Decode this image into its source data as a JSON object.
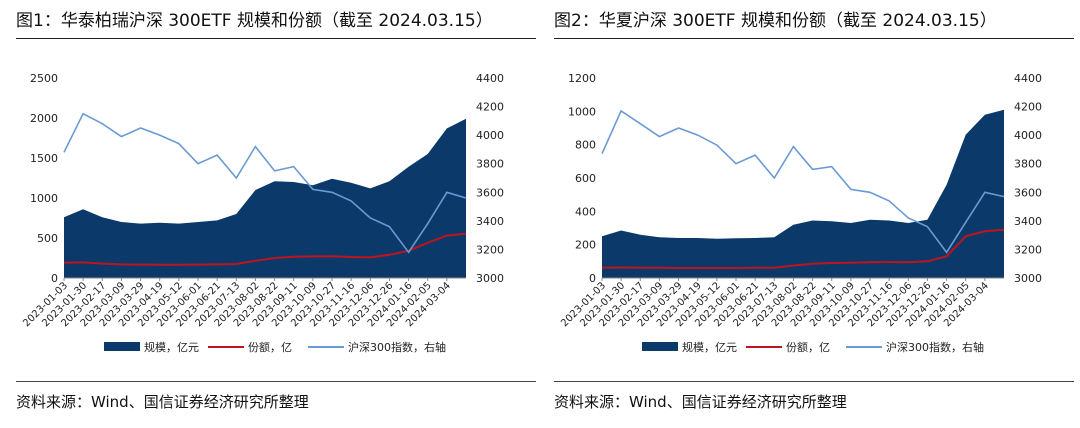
{
  "source_note": "资料来源：Wind、国信证券经济研究所整理",
  "chart_data": [
    {
      "type": "area",
      "title": "图1：华泰柏瑞沪深 300ETF 规模和份额（截至 2024.03.15）",
      "source": "资料来源：Wind、国信证券经济研究所整理",
      "xlabel": "",
      "ylabel": "",
      "y2label": "",
      "ylim": [
        0,
        2500
      ],
      "yticks": [
        0,
        500,
        1000,
        1500,
        2000,
        2500
      ],
      "y2lim": [
        3000,
        4400
      ],
      "y2ticks": [
        3000,
        3200,
        3400,
        3600,
        3800,
        4000,
        4200,
        4400
      ],
      "x": [
        "2023-01-03",
        "2023-01-30",
        "2023-02-17",
        "2023-03-09",
        "2023-03-29",
        "2023-04-19",
        "2023-05-12",
        "2023-06-01",
        "2023-06-21",
        "2023-07-13",
        "2023-08-02",
        "2023-08-22",
        "2023-09-11",
        "2023-10-09",
        "2023-10-27",
        "2023-11-16",
        "2023-12-06",
        "2023-12-26",
        "2024-01-16",
        "2024-02-05",
        "2024-03-04",
        "2024-03-15"
      ],
      "x_tick_labels": [
        "2023-01-03",
        "2023-01-30",
        "2023-02-17",
        "2023-03-09",
        "2023-03-29",
        "2023-04-19",
        "2023-05-12",
        "2023-06-01",
        "2023-06-21",
        "2023-07-13",
        "2023-08-02",
        "2023-08-22",
        "2023-09-11",
        "2023-10-09",
        "2023-10-27",
        "2023-11-16",
        "2023-12-06",
        "2023-12-26",
        "2024-01-16",
        "2024-02-05",
        "2024-03-04"
      ],
      "series": [
        {
          "name": "规模，亿元",
          "kind": "area",
          "axis": "left",
          "color": "#0b3a6a",
          "values": [
            760,
            860,
            760,
            700,
            680,
            690,
            680,
            700,
            720,
            800,
            1100,
            1210,
            1200,
            1160,
            1240,
            1190,
            1120,
            1210,
            1390,
            1550,
            1870,
            1990
          ]
        },
        {
          "name": "份额，亿",
          "kind": "line",
          "axis": "left",
          "color": "#c0141c",
          "values": [
            190,
            195,
            180,
            170,
            168,
            165,
            165,
            168,
            170,
            175,
            215,
            250,
            265,
            270,
            272,
            262,
            258,
            290,
            340,
            440,
            530,
            555
          ]
        },
        {
          "name": "沪深300指数，右轴",
          "kind": "line",
          "axis": "right",
          "color": "#6a9ad3",
          "values": [
            3880,
            4150,
            4080,
            3990,
            4050,
            4000,
            3940,
            3800,
            3860,
            3700,
            3920,
            3750,
            3780,
            3620,
            3600,
            3540,
            3420,
            3360,
            3180,
            3380,
            3600,
            3560
          ]
        }
      ]
    },
    {
      "type": "area",
      "title": "图2：华夏沪深 300ETF 规模和份额（截至 2024.03.15）",
      "source": "资料来源：Wind、国信证券经济研究所整理",
      "xlabel": "",
      "ylabel": "",
      "y2label": "",
      "ylim": [
        0,
        1200
      ],
      "yticks": [
        0,
        200,
        400,
        600,
        800,
        1000,
        1200
      ],
      "y2lim": [
        3000,
        4400
      ],
      "y2ticks": [
        3000,
        3200,
        3400,
        3600,
        3800,
        4000,
        4200,
        4400
      ],
      "x": [
        "2023-01-03",
        "2023-01-30",
        "2023-02-17",
        "2023-03-09",
        "2023-03-29",
        "2023-04-19",
        "2023-05-12",
        "2023-06-01",
        "2023-06-21",
        "2023-07-13",
        "2023-08-02",
        "2023-08-22",
        "2023-09-11",
        "2023-10-09",
        "2023-10-27",
        "2023-11-16",
        "2023-12-06",
        "2023-12-26",
        "2024-01-16",
        "2024-02-05",
        "2024-03-04",
        "2024-03-15"
      ],
      "x_tick_labels": [
        "2023-01-03",
        "2023-01-30",
        "2023-02-17",
        "2023-03-09",
        "2023-03-29",
        "2023-04-19",
        "2023-05-12",
        "2023-06-01",
        "2023-06-21",
        "2023-07-13",
        "2023-08-02",
        "2023-08-22",
        "2023-09-11",
        "2023-10-09",
        "2023-10-27",
        "2023-11-16",
        "2023-12-06",
        "2023-12-26",
        "2024-01-16",
        "2024-02-05",
        "2024-03-04"
      ],
      "series": [
        {
          "name": "规模，亿元",
          "kind": "area",
          "axis": "left",
          "color": "#0b3a6a",
          "values": [
            250,
            285,
            260,
            245,
            240,
            240,
            235,
            238,
            240,
            245,
            320,
            345,
            340,
            330,
            350,
            345,
            330,
            350,
            560,
            860,
            980,
            1010
          ]
        },
        {
          "name": "份额，亿",
          "kind": "line",
          "axis": "left",
          "color": "#c0141c",
          "values": [
            62,
            63,
            62,
            61,
            60,
            60,
            60,
            60,
            61,
            62,
            75,
            85,
            90,
            92,
            95,
            96,
            95,
            100,
            130,
            250,
            280,
            290
          ]
        },
        {
          "name": "沪深300指数，右轴",
          "kind": "line",
          "axis": "right",
          "color": "#6a9ad3",
          "values": [
            3870,
            4170,
            4080,
            3990,
            4050,
            4000,
            3930,
            3800,
            3860,
            3700,
            3920,
            3760,
            3780,
            3620,
            3600,
            3540,
            3420,
            3360,
            3180,
            3390,
            3600,
            3570
          ]
        }
      ]
    }
  ]
}
